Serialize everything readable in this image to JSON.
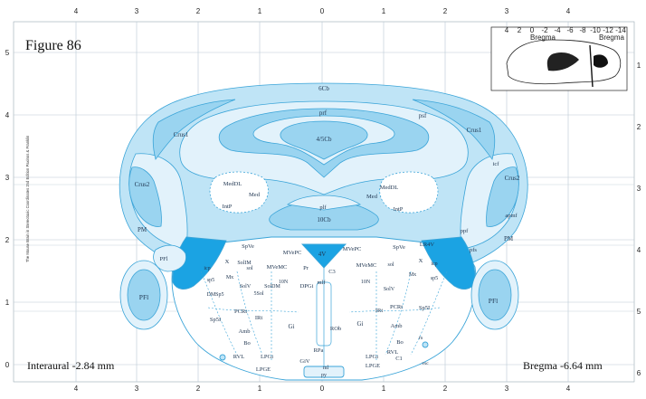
{
  "figure_title": "Figure 86",
  "interaural": "Interaural -2.84 mm",
  "bregma": "Bregma -6.64 mm",
  "side_credit": "The Mouse Brain in Stereotaxic Coordinates 2nd Edition  Paxinos & Franklin",
  "colors": {
    "pale": "#e2f2fb",
    "light": "#bfe4f6",
    "mid": "#9ad4f0",
    "dark": "#1ba3e3",
    "line": "#3aa4d8",
    "grid": "#b9c8d2"
  },
  "top_axis": [
    "4",
    "3",
    "2",
    "1",
    "0",
    "1",
    "2",
    "3",
    "4"
  ],
  "bottom_axis": [
    "4",
    "3",
    "2",
    "1",
    "0",
    "1",
    "2",
    "3",
    "4"
  ],
  "left_axis": [
    "5",
    "4",
    "3",
    "2",
    "1",
    "0"
  ],
  "right_axis": [
    "1",
    "2",
    "3",
    "4",
    "5",
    "6"
  ],
  "inset": {
    "top_ticks": [
      "4",
      "2",
      "0",
      "-2",
      "-4",
      "-6",
      "-8",
      "-10",
      "-12",
      "-14"
    ],
    "label_left": "Bregma",
    "label_right": "Bregma"
  },
  "labels": {
    "cb6": "6Cb",
    "prf": "prf",
    "cb45": "4/5Cb",
    "psf": "psf",
    "crus1_l": "Crus1",
    "crus1_r": "Crus1",
    "crus2_l": "Crus2",
    "crus2_r": "Crus2",
    "icf": "icf",
    "medDL_l": "MedDL",
    "medDL_r": "MedDL",
    "med_l": "Med",
    "med_r": "Med",
    "intP_l": "IntP",
    "intP_r": "IntP",
    "plf": "plf",
    "cb10": "10Cb",
    "ppf": "ppf",
    "pm_l": "PM",
    "pm_r": "PM",
    "pfs": "pfs",
    "apmf": "apmf",
    "pfl_l": "PFl",
    "pfl_r": "PFl",
    "pfl_lo": "PFl",
    "spve_l": "SpVe",
    "spve_r": "SpVe",
    "lr4v": "LR4V",
    "mvepc_l": "MVePC",
    "mvepc_r": "MVePC",
    "v4": "4V",
    "x_l": "X",
    "x_r": "X",
    "solim": "SolIM",
    "sol_l": "sol",
    "sol_r": "sol",
    "mvemc_l": "MVeMC",
    "mvemc_r": "MVeMC",
    "pr": "Pr",
    "c3": "C3",
    "icp_l": "icp",
    "icp_r": "icp",
    "mx_l": "Mx",
    "mx_r": "Mx",
    "sp5_l": "sp5",
    "sp5_r": "sp5",
    "solv_l": "SolV",
    "solv_r": "SolV",
    "soldm": "SolDM",
    "n10_l": "10N",
    "n10_r": "10N",
    "dpgi": "DPGi",
    "mlf": "mlf",
    "dmsp5": "DMSp5",
    "ssol": "5Sol",
    "sp5i_l": "Sp5I",
    "sp5i_r": "Sp5I",
    "pcrt_l": "PCRt",
    "pcrt_r": "PCRt",
    "irt_l": "IRt",
    "irt_r": "IRt",
    "gi_l": "Gi",
    "gi_r": "Gi",
    "rob": "ROb",
    "amb_l": "Amb",
    "amb_r": "Amb",
    "bo_l": "Bo",
    "bo_r": "Bo",
    "rs": "rs",
    "rvl_l": "RVL",
    "rvl_r": "RVL",
    "c1": "C1",
    "rpa": "RPa",
    "lpgi_l": "LPGi",
    "lpgi_r": "LPGi",
    "giv": "GiV",
    "lpge_l": "LPGE",
    "lpge_r": "LPGE",
    "ml": "ml",
    "py": "py",
    "vsc": "vsc"
  }
}
